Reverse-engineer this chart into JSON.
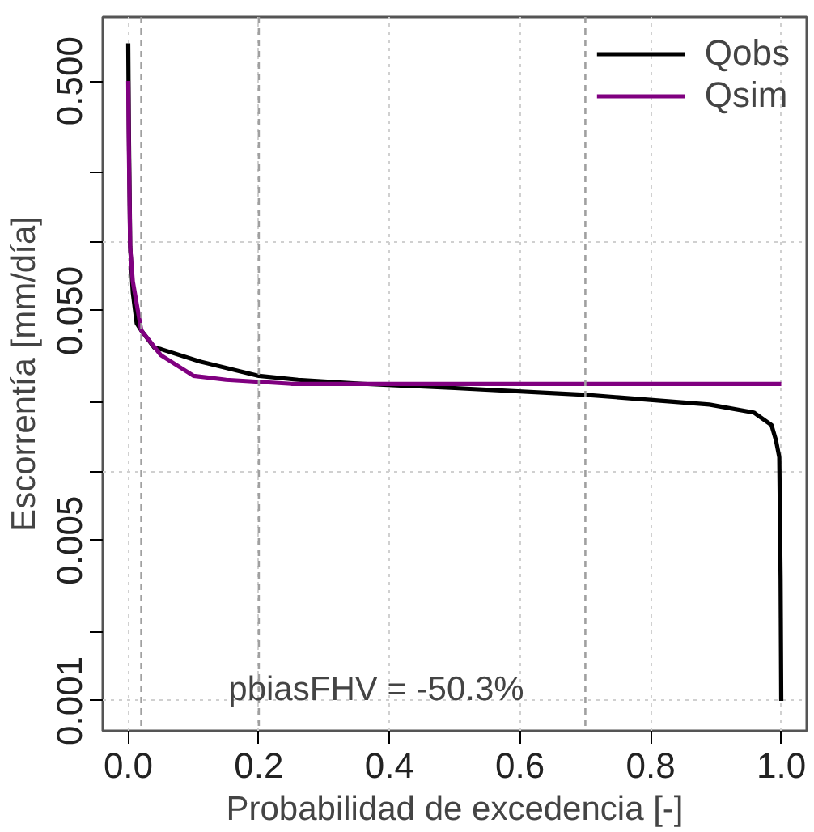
{
  "chart_data": {
    "type": "line",
    "xlabel": "Probabilidad de excedencia [-]",
    "ylabel": "Escorrentía [mm/día]",
    "log": "y",
    "grid": true,
    "legend": "top right",
    "line_style": "solid",
    "marker": "none",
    "xlim": [
      -0.039,
      1.039
    ],
    "ylim": [
      0.00074,
      0.95
    ],
    "xticks": [
      {
        "value": 0,
        "label": "0.0"
      },
      0.2,
      0.4,
      0.6,
      0.8,
      {
        "value": 1,
        "label": "1.0"
      }
    ],
    "yticks": [
      {
        "value": 0.001,
        "label": "0.001"
      },
      {
        "value": 0.002,
        "label": null
      },
      {
        "value": 0.005,
        "label": "0.005"
      },
      {
        "value": 0.01,
        "label": null
      },
      {
        "value": 0.02,
        "label": null
      },
      {
        "value": 0.05,
        "label": "0.050"
      },
      {
        "value": 0.1,
        "label": null
      },
      {
        "value": 0.2,
        "label": null
      },
      {
        "value": 0.5,
        "label": "0.500"
      }
    ],
    "series": [
      {
        "name": "Qobs",
        "color": "#000000",
        "x": [
          0,
          0.001,
          0.003,
          0.007,
          0.013,
          0.02,
          0.04,
          0.05,
          0.11,
          0.2,
          0.26,
          0.36,
          0.5,
          0.7,
          0.89,
          0.958,
          0.985,
          0.992,
          0.997,
          0.999,
          1.0
        ],
        "values": [
          0.73,
          0.3,
          0.095,
          0.06,
          0.044,
          0.041,
          0.0345,
          0.034,
          0.03,
          0.026,
          0.025,
          0.024,
          0.023,
          0.0215,
          0.0195,
          0.018,
          0.0159,
          0.0136,
          0.0115,
          0.0034,
          0.001
        ]
      },
      {
        "name": "Qsim",
        "color": "#800080",
        "x": [
          0,
          0.001,
          0.003,
          0.007,
          0.02,
          0.05,
          0.1,
          0.15,
          0.2,
          0.25,
          0.5,
          0.75,
          1.0
        ],
        "values": [
          0.5,
          0.25,
          0.094,
          0.067,
          0.041,
          0.032,
          0.026,
          0.025,
          0.0245,
          0.024,
          0.024,
          0.024,
          0.024
        ]
      }
    ],
    "ref_lines": [
      {
        "axis": "x",
        "value": 0.02,
        "color": "#a0a0a0",
        "line_style": "dashed"
      },
      {
        "axis": "x",
        "value": 0.2,
        "color": "#a0a0a0",
        "line_style": "dashed"
      },
      {
        "axis": "x",
        "value": 0.7,
        "color": "#a0a0a0",
        "line_style": "dashed"
      }
    ],
    "annotations": [
      "pbiasFHV = -50.3%"
    ]
  }
}
